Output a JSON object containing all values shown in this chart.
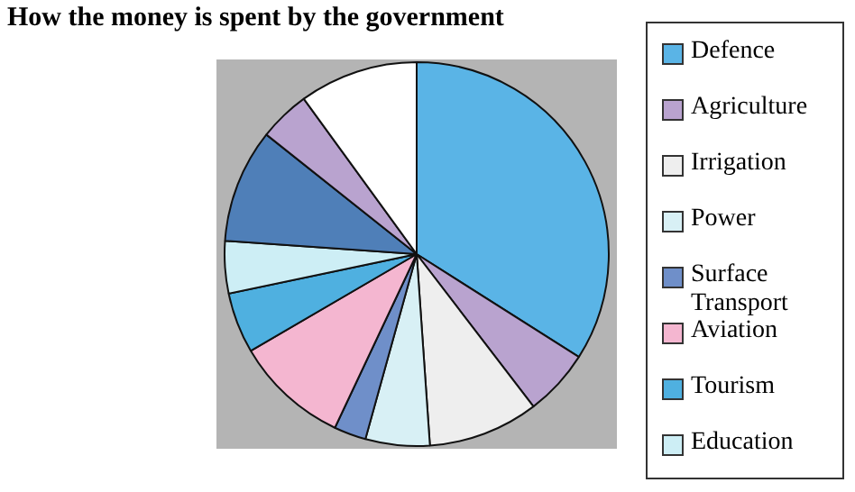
{
  "chart_data": {
    "type": "pie",
    "title": "How the money is spent by the government",
    "categories": [
      "Defence",
      "Agriculture",
      "Irrigation",
      "Power",
      "Surface Transport",
      "Aviation",
      "Tourism",
      "Education",
      null,
      null,
      null
    ],
    "values": [
      34.0,
      5.6,
      9.3,
      5.4,
      2.7,
      9.6,
      5.1,
      4.4,
      9.6,
      4.3,
      10.0
    ],
    "colors": [
      "#5ab4e6",
      "#b9a3cf",
      "#eeeeee",
      "#d8f0f5",
      "#6f8fc9",
      "#f4b6d0",
      "#4fb0e0",
      "#cdeef5",
      "#4f7fb8",
      "#b9a3cf",
      "#ffffff"
    ],
    "legend": "right"
  }
}
